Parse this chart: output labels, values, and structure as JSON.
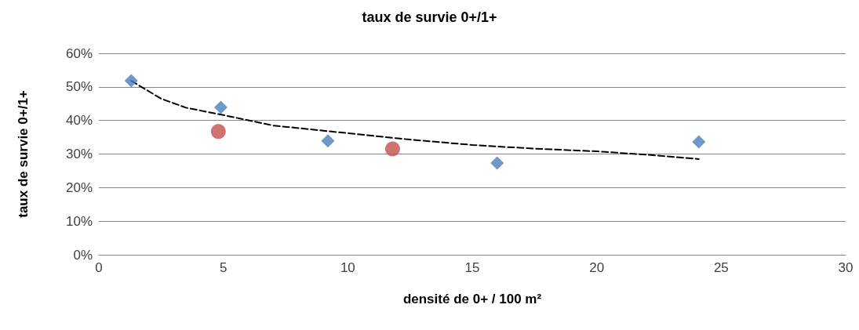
{
  "chart_data": {
    "type": "scatter",
    "title": "taux de survie 0+/1+",
    "xlabel": "densité de 0+ / 100 m²",
    "ylabel": "taux de survie 0+/1+",
    "xlim": [
      0,
      30
    ],
    "xticks": [
      0,
      5,
      10,
      15,
      20,
      25,
      30
    ],
    "ylim": [
      0,
      60
    ],
    "yticks": [
      {
        "value": 0,
        "label": "0%"
      },
      {
        "value": 10,
        "label": "10%"
      },
      {
        "value": 20,
        "label": "20%"
      },
      {
        "value": 30,
        "label": "30%"
      },
      {
        "value": 40,
        "label": "40%"
      },
      {
        "value": 50,
        "label": "50%"
      },
      {
        "value": 60,
        "label": "60%"
      }
    ],
    "grid": "y",
    "series": [
      {
        "color": "#4a7ebb",
        "marker": "diamond",
        "x": [
          1.3,
          4.9,
          9.2,
          16.0,
          24.1
        ],
        "values": [
          51.8,
          43.9,
          33.9,
          27.3,
          33.6
        ]
      },
      {
        "color": "#c0504d",
        "marker": "circle",
        "x": [
          4.8,
          11.8
        ],
        "values": [
          36.7,
          31.5
        ]
      },
      {
        "type": "line",
        "color": "#000000",
        "marker": "none",
        "line_style": "dashed",
        "x": [
          1.3,
          2.5,
          3.5,
          5,
          7,
          10,
          12.5,
          15,
          17.5,
          20,
          22,
          24.1
        ],
        "values": [
          51.8,
          46.5,
          43.8,
          41.6,
          38.5,
          36.2,
          34.3,
          32.7,
          31.6,
          30.8,
          29.8,
          28.5
        ]
      }
    ]
  }
}
